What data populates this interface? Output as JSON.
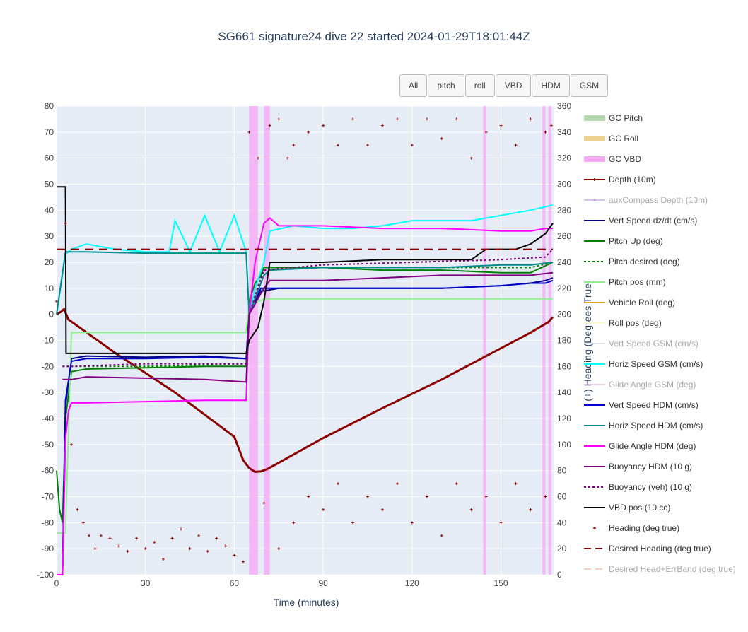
{
  "title": "SG661 signature24 dive 22 started 2024-01-29T18:01:44Z",
  "buttons": [
    {
      "label": "All"
    },
    {
      "label": "pitch"
    },
    {
      "label": "roll"
    },
    {
      "label": "VBD"
    },
    {
      "label": "HDM"
    },
    {
      "label": "GSM"
    }
  ],
  "chart_data": {
    "type": "line",
    "title": "SG661 signature24 dive 22 started 2024-01-29T18:01:44Z",
    "xlabel": "Time (minutes)",
    "ylabel": "",
    "y2label": "(+) Heading (Degrees True)",
    "xlim": [
      0,
      168
    ],
    "ylim": [
      -100,
      80
    ],
    "y2lim": [
      0,
      360
    ],
    "x_ticks": [
      0,
      30,
      60,
      90,
      120,
      150
    ],
    "y_ticks": [
      80,
      70,
      60,
      50,
      40,
      30,
      20,
      10,
      0,
      -10,
      -20,
      -30,
      -40,
      -50,
      -60,
      -70,
      -80,
      -90,
      -100
    ],
    "y2_ticks": [
      360,
      340,
      320,
      300,
      280,
      260,
      240,
      220,
      200,
      180,
      160,
      140,
      120,
      100,
      80,
      60,
      40,
      20,
      0
    ],
    "grid": true,
    "legend_position": "right",
    "legend": [
      {
        "name": "GC Pitch",
        "color": "#b5d9b0",
        "style": "band",
        "visible": true
      },
      {
        "name": "GC Roll",
        "color": "#ecd28f",
        "style": "band",
        "visible": true
      },
      {
        "name": "GC VBD",
        "color": "#f6aaf6",
        "style": "band",
        "visible": true
      },
      {
        "name": "Depth (10m)",
        "color": "#8b0000",
        "style": "line-marker",
        "visible": true
      },
      {
        "name": "auxCompass Depth (10m)",
        "color": "#b788d8",
        "style": "line-marker",
        "visible": false
      },
      {
        "name": "Vert Speed dz/dt (cm/s)",
        "color": "#000080",
        "style": "line",
        "visible": true
      },
      {
        "name": "Pitch Up (deg)",
        "color": "#008000",
        "style": "line",
        "visible": true
      },
      {
        "name": "Pitch desired (deg)",
        "color": "#008000",
        "style": "dot",
        "visible": true
      },
      {
        "name": "Pitch pos (mm)",
        "color": "#90ee90",
        "style": "line",
        "visible": true
      },
      {
        "name": "Vehicle Roll (deg)",
        "color": "#daa520",
        "style": "line",
        "visible": true
      },
      {
        "name": "Roll pos (deg)",
        "color": "#fafad2",
        "style": "line",
        "visible": true
      },
      {
        "name": "Vert Speed GSM (cm/s)",
        "color": "#b0c4de",
        "style": "line",
        "visible": false
      },
      {
        "name": "Horiz Speed GSM (cm/s)",
        "color": "#00ffff",
        "style": "line",
        "visible": true
      },
      {
        "name": "Glide Angle GSM (deg)",
        "color": "#dda0dd",
        "style": "line",
        "visible": false
      },
      {
        "name": "Vert Speed HDM (cm/s)",
        "color": "#0000cd",
        "style": "line",
        "visible": true
      },
      {
        "name": "Horiz Speed HDM (cm/s)",
        "color": "#008b8b",
        "style": "line",
        "visible": true
      },
      {
        "name": "Glide Angle HDM (deg)",
        "color": "#ff00ff",
        "style": "line",
        "visible": true
      },
      {
        "name": "Buoyancy HDM (10 g)",
        "color": "#800080",
        "style": "line",
        "visible": true
      },
      {
        "name": "Buoyancy (veh) (10 g)",
        "color": "#800080",
        "style": "dot",
        "visible": true
      },
      {
        "name": "VBD pos (10 cc)",
        "color": "#000000",
        "style": "line",
        "visible": true
      },
      {
        "name": "Heading (deg true)",
        "color": "#8b0000",
        "style": "marker",
        "visible": true
      },
      {
        "name": "Desired Heading (deg true)",
        "color": "#8b0000",
        "style": "dash",
        "visible": true
      },
      {
        "name": "Desired Head+ErrBand (deg true)",
        "color": "#e9a47c",
        "style": "dash",
        "visible": false
      }
    ],
    "series": [
      {
        "name": "Depth (10m)",
        "x": [
          0,
          1.5,
          2.5,
          4,
          20,
          40,
          60,
          63,
          65,
          67,
          69,
          71,
          75,
          90,
          110,
          130,
          150,
          160,
          166,
          167.5
        ],
        "y": [
          0,
          1,
          2,
          -2,
          -15,
          -30,
          -47,
          -56,
          -59,
          -60.5,
          -60.3,
          -59.5,
          -57,
          -47.5,
          -36,
          -25,
          -13,
          -7,
          -3,
          -1
        ]
      },
      {
        "name": "Vert Speed dz/dt (cm/s)",
        "x": [
          0,
          2,
          3,
          5,
          10,
          30,
          50,
          64,
          65,
          67,
          69,
          70,
          75,
          90,
          110,
          130,
          150,
          160,
          165,
          167.5
        ],
        "y": [
          -100,
          -100,
          -35,
          -17,
          -16,
          -16.5,
          -16,
          -17,
          0,
          5,
          9,
          9,
          10,
          10,
          10,
          10,
          11,
          12,
          13,
          14
        ]
      },
      {
        "name": "Pitch Up (deg)",
        "x": [
          0,
          1,
          2,
          3,
          5,
          10,
          30,
          50,
          64,
          65,
          67,
          69,
          70,
          75,
          90,
          110,
          130,
          150,
          160,
          167.5
        ],
        "y": [
          -60,
          -75,
          -80,
          -40,
          -22,
          -21,
          -20.5,
          -20,
          -20,
          5,
          12,
          15,
          18,
          18,
          18,
          17,
          17,
          16,
          16,
          20
        ]
      },
      {
        "name": "Pitch desired (deg)",
        "x": [
          2,
          5,
          30,
          64,
          65,
          70,
          90,
          130,
          160,
          167.5
        ],
        "y": [
          -20,
          -20,
          -20,
          -19,
          0,
          18,
          18,
          18,
          18,
          20
        ]
      },
      {
        "name": "Pitch pos (mm)",
        "x": [
          0,
          3,
          5,
          30,
          64,
          65,
          70,
          90,
          130,
          167.5
        ],
        "y": [
          -84,
          -84,
          -7,
          -7,
          -7,
          3,
          6,
          6,
          6,
          6
        ]
      },
      {
        "name": "Horiz Speed GSM (cm/s)",
        "x": [
          0,
          3,
          5,
          10,
          20,
          30,
          38,
          40,
          45,
          50,
          55,
          60,
          64,
          65,
          67,
          70,
          72,
          80,
          90,
          100,
          110,
          120,
          130,
          140,
          150,
          160,
          167.5
        ],
        "y": [
          0,
          23,
          25,
          27,
          25,
          24,
          24,
          36,
          24,
          38,
          24,
          38,
          24,
          0,
          10,
          20,
          32,
          34,
          33,
          33,
          34,
          36,
          36,
          36,
          38,
          40,
          42
        ]
      },
      {
        "name": "Vert Speed HDM (cm/s)",
        "x": [
          0,
          2,
          3,
          5,
          10,
          30,
          50,
          64,
          65,
          67,
          69,
          70,
          75,
          90,
          110,
          130,
          150,
          160,
          165,
          167.5
        ],
        "y": [
          -100,
          -100,
          -33,
          -18,
          -17,
          -17,
          -16.5,
          -17,
          0,
          6,
          10,
          10,
          10,
          10,
          10,
          10,
          11,
          12,
          12,
          13
        ]
      },
      {
        "name": "Horiz Speed HDM (cm/s)",
        "x": [
          0,
          3,
          5,
          10,
          30,
          50,
          64,
          65,
          70,
          72,
          90,
          110,
          130,
          150,
          160,
          167.5
        ],
        "y": [
          0,
          24,
          24,
          24,
          23.5,
          23.5,
          23.5,
          0,
          15,
          17,
          18,
          18,
          18,
          19,
          19,
          20
        ]
      },
      {
        "name": "Glide Angle HDM (deg)",
        "x": [
          0,
          2,
          3,
          4,
          5,
          10,
          30,
          50,
          64,
          65,
          67,
          70,
          72,
          75,
          90,
          110,
          130,
          150,
          155,
          160,
          165,
          167.5
        ],
        "y": [
          -100,
          -100,
          -48,
          -37,
          -34,
          -34,
          -33.5,
          -33,
          -33,
          0,
          20,
          35,
          37,
          34,
          34,
          33,
          33,
          32,
          32,
          32,
          33,
          33
        ]
      },
      {
        "name": "Buoyancy HDM (10 g)",
        "x": [
          2,
          5,
          10,
          30,
          50,
          64,
          65,
          70,
          72,
          90,
          110,
          130,
          150,
          160,
          167.5
        ],
        "y": [
          -25,
          -25,
          -24,
          -24.5,
          -25,
          -26,
          0,
          10,
          13,
          13,
          14,
          15,
          15,
          15,
          16
        ]
      },
      {
        "name": "Buoyancy (veh) (10 g)",
        "x": [
          2,
          5,
          30,
          64,
          65,
          70,
          90,
          120,
          150,
          165,
          167.5
        ],
        "y": [
          -20,
          -20,
          -19,
          -19,
          0,
          17,
          19,
          20,
          21,
          22,
          25
        ]
      },
      {
        "name": "VBD pos (10 cc)",
        "x": [
          0,
          3,
          3.2,
          10,
          30,
          50,
          64,
          65,
          68,
          69,
          70,
          72,
          90,
          110,
          130,
          140,
          145,
          150,
          155,
          160,
          165,
          167.5
        ],
        "y": [
          49,
          49,
          -15,
          -15,
          -15,
          -15,
          -15,
          -10,
          -5,
          0,
          5,
          20,
          20,
          21,
          21,
          21,
          25,
          25,
          25,
          27,
          31,
          35
        ]
      },
      {
        "name": "Desired Heading (deg true)",
        "x": [
          0,
          30,
          60,
          90,
          120,
          150,
          167.5
        ],
        "y2": [
          250,
          250,
          250,
          250,
          250,
          250,
          250
        ]
      }
    ],
    "heading_points_deg": [
      [
        0,
        210
      ],
      [
        3,
        270
      ],
      [
        5,
        100
      ],
      [
        7,
        50
      ],
      [
        9,
        40
      ],
      [
        11,
        30
      ],
      [
        13,
        20
      ],
      [
        15,
        30
      ],
      [
        18,
        28
      ],
      [
        21,
        22
      ],
      [
        24,
        18
      ],
      [
        27,
        28
      ],
      [
        30,
        20
      ],
      [
        33,
        25
      ],
      [
        36,
        12
      ],
      [
        39,
        28
      ],
      [
        42,
        35
      ],
      [
        45,
        20
      ],
      [
        48,
        30
      ],
      [
        51,
        18
      ],
      [
        54,
        28
      ],
      [
        57,
        22
      ],
      [
        60,
        15
      ],
      [
        63,
        10
      ],
      [
        65,
        340
      ],
      [
        68,
        320
      ],
      [
        70,
        55
      ],
      [
        72,
        345
      ],
      [
        75,
        350
      ],
      [
        78,
        320
      ],
      [
        80,
        330
      ],
      [
        85,
        340
      ],
      [
        90,
        345
      ],
      [
        95,
        330
      ],
      [
        100,
        350
      ],
      [
        105,
        330
      ],
      [
        110,
        345
      ],
      [
        115,
        350
      ],
      [
        120,
        330
      ],
      [
        125,
        350
      ],
      [
        130,
        335
      ],
      [
        135,
        350
      ],
      [
        140,
        320
      ],
      [
        145,
        340
      ],
      [
        150,
        345
      ],
      [
        155,
        330
      ],
      [
        160,
        350
      ],
      [
        165,
        340
      ],
      [
        167,
        345
      ],
      [
        75,
        20
      ],
      [
        80,
        40
      ],
      [
        85,
        60
      ],
      [
        90,
        50
      ],
      [
        95,
        70
      ],
      [
        100,
        40
      ],
      [
        105,
        60
      ],
      [
        110,
        50
      ],
      [
        115,
        70
      ],
      [
        120,
        40
      ],
      [
        125,
        60
      ],
      [
        130,
        30
      ],
      [
        135,
        70
      ],
      [
        140,
        50
      ],
      [
        145,
        60
      ],
      [
        150,
        40
      ],
      [
        155,
        70
      ],
      [
        160,
        50
      ],
      [
        165,
        60
      ]
    ],
    "gc_vbd_bands": [
      [
        65,
        68
      ],
      [
        70,
        72
      ],
      [
        144,
        145
      ],
      [
        164,
        165
      ],
      [
        166,
        167
      ]
    ]
  }
}
